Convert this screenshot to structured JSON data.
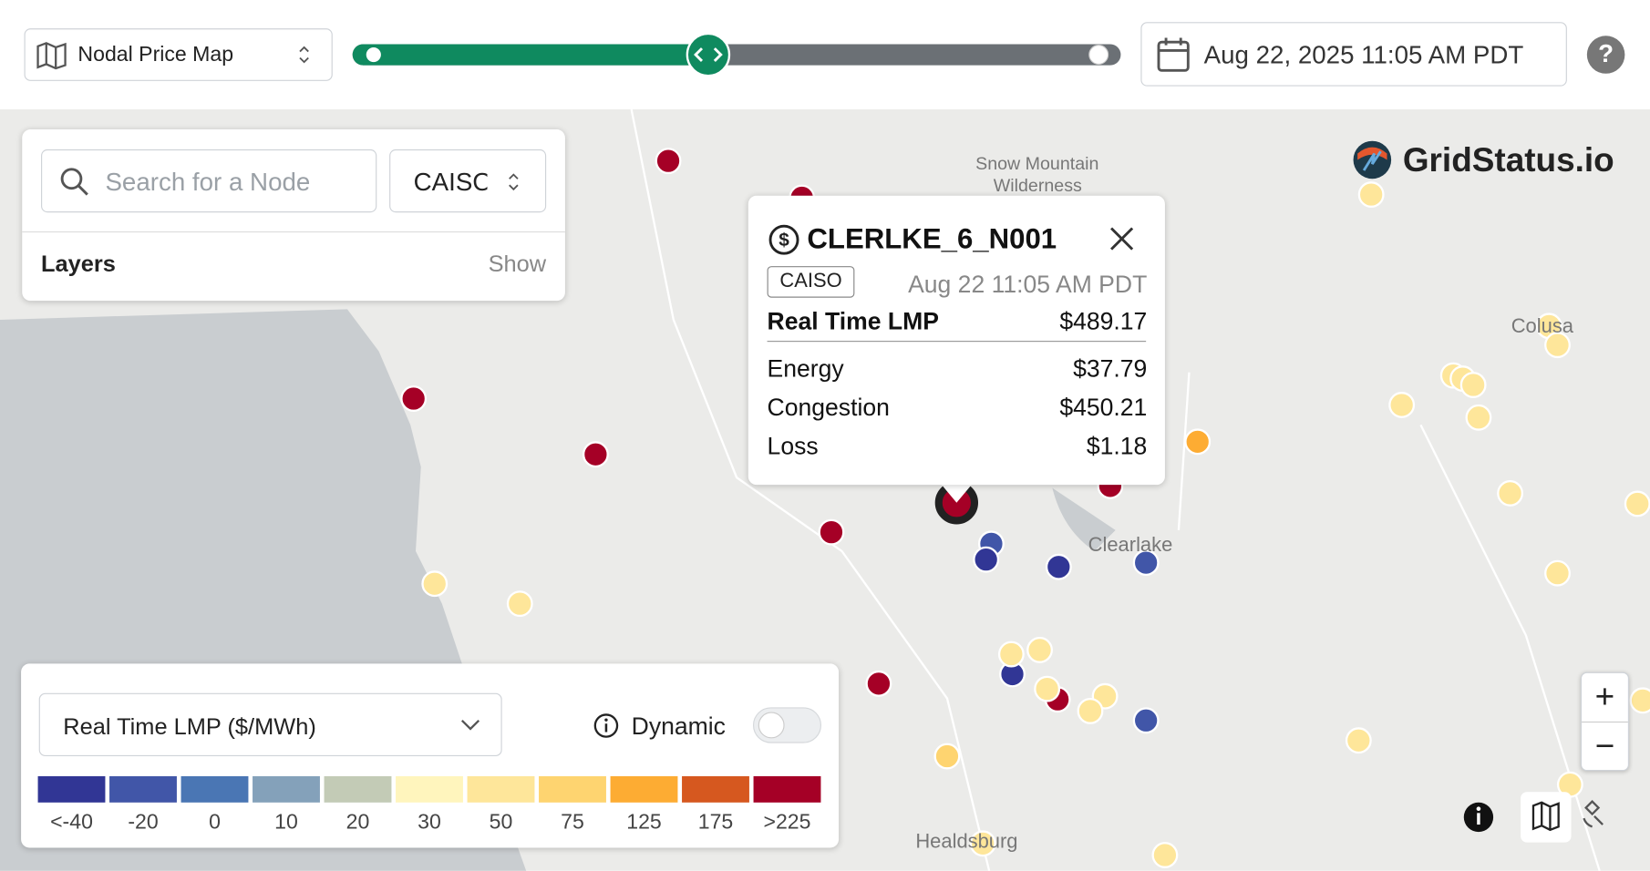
{
  "toolbar": {
    "map_select": "Nodal Price Map",
    "datetime": "Aug 22, 2025 11:05 AM PDT",
    "help": "?"
  },
  "search_panel": {
    "placeholder": "Search for a Node",
    "iso": "CAISO",
    "layers": "Layers",
    "show": "Show"
  },
  "brand": "GridStatus.io",
  "map_labels": [
    "Snow Mountain",
    "Wilderness",
    "Clearlake",
    "Healdsburg",
    "Colusa"
  ],
  "popup": {
    "node": "CLERLKE_6_N001",
    "iso": "CAISO",
    "time": "Aug 22 11:05 AM PDT",
    "rows": [
      [
        "Real Time LMP",
        "$489.17"
      ],
      [
        "Energy",
        "$37.79"
      ],
      [
        "Congestion",
        "$450.21"
      ],
      [
        "Loss",
        "$1.18"
      ]
    ]
  },
  "legend": {
    "metric": "Real Time LMP ($/MWh)",
    "dynamic": "Dynamic",
    "bins": [
      {
        "color": "#313695",
        "label": "<-40"
      },
      {
        "color": "#4156a8",
        "label": "-20"
      },
      {
        "color": "#4a76b4",
        "label": "0"
      },
      {
        "color": "#84a1ba",
        "label": "10"
      },
      {
        "color": "#c3cbb6",
        "label": "20"
      },
      {
        "color": "#fff5bd",
        "label": "30"
      },
      {
        "color": "#fee69a",
        "label": "50"
      },
      {
        "color": "#fed470",
        "label": "75"
      },
      {
        "color": "#fdac33",
        "label": "125"
      },
      {
        "color": "#d6581f",
        "label": "175"
      },
      {
        "color": "#a50026",
        "label": ">225"
      }
    ]
  },
  "zoom": {
    "in": "+",
    "out": "−"
  }
}
